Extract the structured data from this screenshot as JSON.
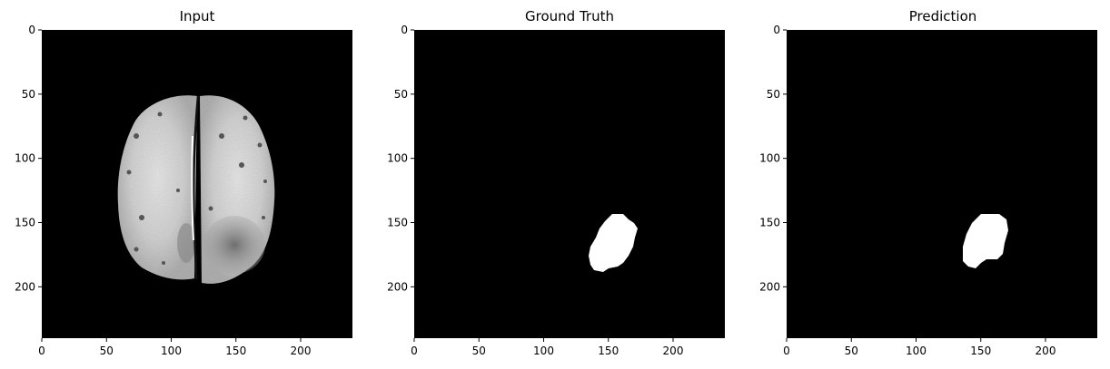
{
  "chart_data": [
    {
      "type": "image",
      "title": "Input",
      "content": "brain-mri-slice",
      "xlim": [
        0,
        240
      ],
      "ylim": [
        240,
        0
      ],
      "xticks": [
        0,
        50,
        100,
        150,
        200
      ],
      "yticks": [
        0,
        50,
        100,
        150,
        200
      ],
      "background": "#000000",
      "colormap": "gray"
    },
    {
      "type": "image",
      "title": "Ground Truth",
      "content": "segmentation-mask",
      "xlim": [
        0,
        240
      ],
      "ylim": [
        240,
        0
      ],
      "xticks": [
        0,
        50,
        100,
        150,
        200
      ],
      "yticks": [
        0,
        50,
        100,
        150,
        200
      ],
      "background": "#000000",
      "colormap": "gray",
      "mask_extent": {
        "x": [
          134,
          172
        ],
        "y": [
          143,
          190
        ]
      }
    },
    {
      "type": "image",
      "title": "Prediction",
      "content": "segmentation-mask",
      "xlim": [
        0,
        240
      ],
      "ylim": [
        240,
        0
      ],
      "xticks": [
        0,
        50,
        100,
        150,
        200
      ],
      "yticks": [
        0,
        50,
        100,
        150,
        200
      ],
      "background": "#000000",
      "colormap": "gray",
      "mask_extent": {
        "x": [
          135,
          172
        ],
        "y": [
          143,
          187
        ]
      }
    }
  ]
}
